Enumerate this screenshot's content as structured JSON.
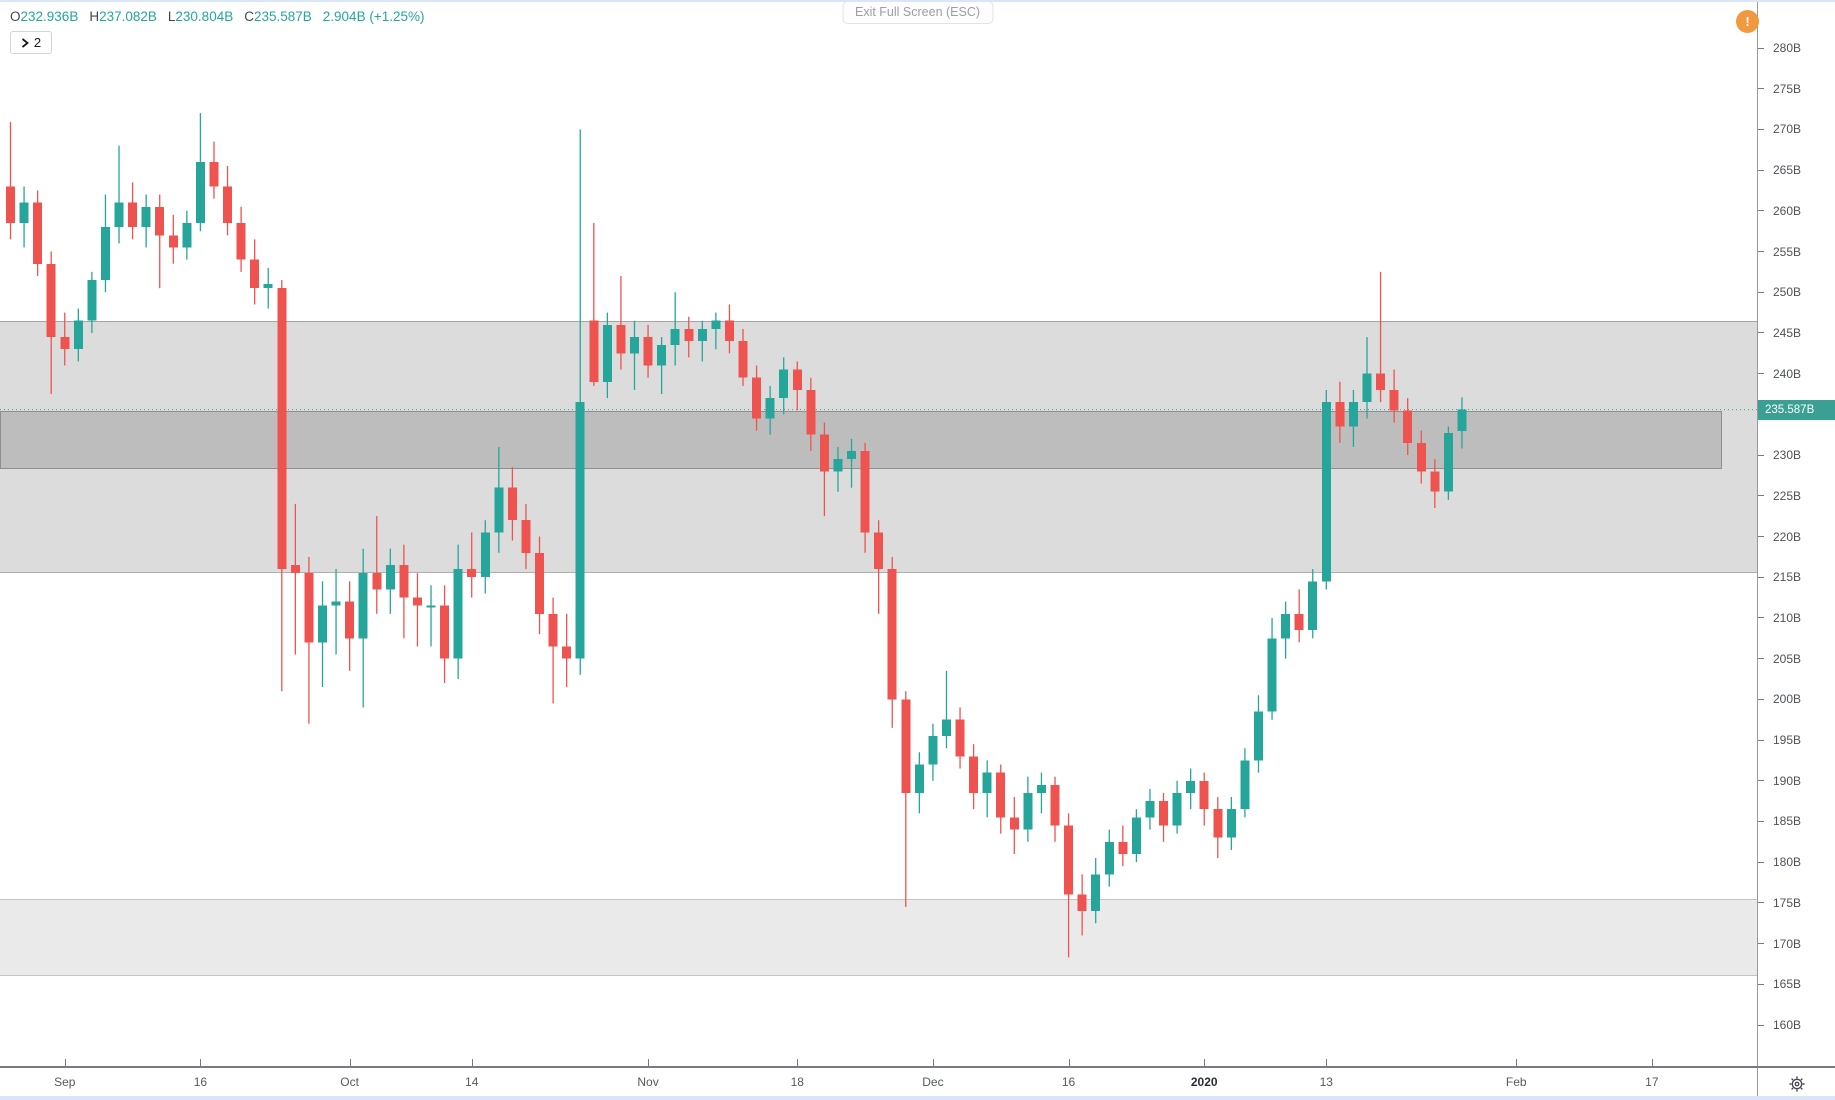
{
  "header": {
    "ohlc": {
      "open_label": "O",
      "open_value": "232.936B",
      "high_label": "H",
      "high_value": "237.082B",
      "low_label": "L",
      "low_value": "230.804B",
      "close_label": "C",
      "close_value": "235.587B",
      "change_value": "2.904B",
      "change_percent": "(+1.25%)"
    },
    "expand_button": {
      "label": "2"
    },
    "exit_fullscreen_label": "Exit Full Screen (ESC)"
  },
  "icons": {
    "warning_symbol": "!"
  },
  "colors": {
    "up": "#26a69a",
    "down": "#ef5350",
    "value_text": "#26a69a",
    "warning_orange": "#f0993e",
    "price_label_bg": "#3aa093",
    "current_price_line": "#3aa093"
  },
  "price_axis": {
    "tick_labels": [
      "280B",
      "275B",
      "270B",
      "265B",
      "260B",
      "255B",
      "250B",
      "245B",
      "240B",
      "235B",
      "230B",
      "225B",
      "220B",
      "215B",
      "210B",
      "205B",
      "200B",
      "195B",
      "190B",
      "185B",
      "180B",
      "175B",
      "170B",
      "165B",
      "160B"
    ],
    "current_price_label": "235.587B"
  },
  "time_axis": {
    "ticks": [
      {
        "label": "Sep",
        "index": 4,
        "bold": false
      },
      {
        "label": "16",
        "index": 14,
        "bold": false
      },
      {
        "label": "Oct",
        "index": 25,
        "bold": false
      },
      {
        "label": "14",
        "index": 34,
        "bold": false
      },
      {
        "label": "Nov",
        "index": 47,
        "bold": false
      },
      {
        "label": "18",
        "index": 58,
        "bold": false
      },
      {
        "label": "Dec",
        "index": 68,
        "bold": false
      },
      {
        "label": "16",
        "index": 78,
        "bold": false
      },
      {
        "label": "2020",
        "index": 88,
        "bold": true
      },
      {
        "label": "13",
        "index": 97,
        "bold": false
      },
      {
        "label": "Feb",
        "index": 111,
        "bold": false
      },
      {
        "label": "17",
        "index": 121,
        "bold": false
      }
    ]
  },
  "chart_data": {
    "type": "candlestick",
    "unit": "B",
    "title": "",
    "ylabel": "",
    "grid": false,
    "visible_price_range": [
      158,
      282
    ],
    "price_tick_interval": 5,
    "current_price": 235.587,
    "zones": [
      {
        "name": "upper-gray-zone",
        "price_top": 246.5,
        "price_bottom": 215.5,
        "full_width": true,
        "fill": "rgba(150,150,150,0.33)",
        "border_top": "rgba(120,120,120,0.55)",
        "border_bottom": "rgba(120,120,120,0.45)",
        "boxed": false
      },
      {
        "name": "mid-dark-zone",
        "price_top": 235.45,
        "price_bottom": 228.3,
        "full_width": false,
        "fill": "rgba(135,135,135,0.36)",
        "border_top": "rgba(105,105,105,0.55)",
        "border_bottom": "rgba(105,105,105,0.55)",
        "boxed": true
      },
      {
        "name": "lower-light-zone",
        "price_top": 175.5,
        "price_bottom": 166.0,
        "full_width": true,
        "fill": "rgba(180,180,180,0.28)",
        "border_top": "rgba(150,150,150,0.45)",
        "border_bottom": "rgba(150,150,150,0.45)",
        "boxed": false
      }
    ],
    "candles": [
      [
        263,
        270.9,
        256.5,
        258.5
      ],
      [
        258.5,
        263,
        255.5,
        261
      ],
      [
        261,
        262.5,
        252,
        253.5
      ],
      [
        253.5,
        255,
        237.5,
        244.5
      ],
      [
        244.5,
        247.5,
        241,
        243
      ],
      [
        243,
        248,
        241.5,
        246.5
      ],
      [
        246.5,
        252.5,
        245,
        251.5
      ],
      [
        251.5,
        262,
        250,
        258
      ],
      [
        258,
        268,
        256,
        261
      ],
      [
        261,
        263.5,
        256.5,
        258
      ],
      [
        258,
        262,
        255.5,
        260.5
      ],
      [
        260.5,
        262,
        250.5,
        257
      ],
      [
        257,
        259.5,
        253.5,
        255.5
      ],
      [
        255.5,
        260,
        254,
        258.5
      ],
      [
        258.5,
        272,
        257.5,
        266
      ],
      [
        266,
        268.5,
        261.5,
        263
      ],
      [
        263,
        265.5,
        257,
        258.5
      ],
      [
        258.5,
        260.5,
        252.5,
        254
      ],
      [
        254,
        256.5,
        248.5,
        250.5
      ],
      [
        250.5,
        253,
        248,
        251
      ],
      [
        250.5,
        251.5,
        201,
        216
      ],
      [
        216.5,
        224,
        205.5,
        215.5
      ],
      [
        215.5,
        217.5,
        197,
        207
      ],
      [
        207,
        214.5,
        201.5,
        211.5
      ],
      [
        211.5,
        216,
        205.5,
        212
      ],
      [
        212,
        214.5,
        203.5,
        207.5
      ],
      [
        207.5,
        218.5,
        199,
        215.5
      ],
      [
        215.5,
        222.5,
        210.5,
        213.5
      ],
      [
        213.5,
        218.5,
        210.5,
        216.5
      ],
      [
        216.5,
        219,
        207.5,
        212.5
      ],
      [
        212.5,
        215.5,
        206.5,
        211.5
      ],
      [
        211.5,
        214,
        206.5,
        211.5
      ],
      [
        211.5,
        214,
        202,
        205
      ],
      [
        205,
        219,
        202.5,
        216
      ],
      [
        216,
        220.5,
        212.5,
        215
      ],
      [
        215,
        222,
        213,
        220.5
      ],
      [
        220.5,
        231,
        218,
        226
      ],
      [
        226,
        228.5,
        219.5,
        222
      ],
      [
        222,
        224,
        216,
        218
      ],
      [
        218,
        220,
        208,
        210.5
      ],
      [
        210.5,
        212.5,
        199.5,
        206.5
      ],
      [
        206.5,
        210.5,
        201.5,
        205
      ],
      [
        205,
        270,
        203,
        236.5
      ],
      [
        246.5,
        258.5,
        238.5,
        239
      ],
      [
        239,
        247.5,
        237,
        246
      ],
      [
        246,
        252,
        240.5,
        242.5
      ],
      [
        242.5,
        246.5,
        238,
        244.5
      ],
      [
        244.5,
        246,
        239.5,
        241
      ],
      [
        241,
        244.5,
        237.5,
        243.5
      ],
      [
        243.5,
        250,
        241,
        245.5
      ],
      [
        245.5,
        247,
        242,
        244
      ],
      [
        244,
        246.5,
        241.5,
        245.5
      ],
      [
        245.5,
        247.5,
        243,
        246.5
      ],
      [
        246.5,
        248.5,
        242.5,
        244
      ],
      [
        244,
        245.5,
        238.5,
        239.5
      ],
      [
        239.5,
        241,
        233,
        234.5
      ],
      [
        234.5,
        238.5,
        232.5,
        237
      ],
      [
        237,
        242,
        235,
        240.5
      ],
      [
        240.5,
        241.5,
        235.5,
        238
      ],
      [
        238,
        239.5,
        230.5,
        232.5
      ],
      [
        232.5,
        234,
        222.5,
        228
      ],
      [
        228,
        231,
        225.5,
        229.5
      ],
      [
        229.5,
        232,
        226,
        230.5
      ],
      [
        230.5,
        231.5,
        218,
        220.5
      ],
      [
        220.5,
        222,
        210.5,
        216
      ],
      [
        216,
        217.5,
        196.5,
        200
      ],
      [
        200,
        201,
        174.5,
        188.5
      ],
      [
        188.5,
        193.5,
        186,
        192
      ],
      [
        192,
        197,
        190,
        195.5
      ],
      [
        195.5,
        203.5,
        194,
        197.5
      ],
      [
        197.5,
        199,
        191.5,
        193
      ],
      [
        193,
        194.5,
        186.5,
        188.5
      ],
      [
        188.5,
        192.5,
        185.5,
        191
      ],
      [
        191,
        192,
        183.5,
        185.5
      ],
      [
        185.5,
        188,
        181,
        184
      ],
      [
        184,
        190.5,
        182.5,
        188.5
      ],
      [
        188.5,
        191,
        186,
        189.5
      ],
      [
        189.5,
        190.5,
        182.5,
        184.5
      ],
      [
        184.5,
        186,
        168.3,
        176
      ],
      [
        176,
        178.5,
        171,
        174
      ],
      [
        174,
        180.5,
        172.5,
        178.5
      ],
      [
        178.5,
        184,
        177,
        182.5
      ],
      [
        182.5,
        184.5,
        179.5,
        181
      ],
      [
        181,
        186.5,
        180,
        185.5
      ],
      [
        185.5,
        189,
        184,
        187.5
      ],
      [
        187.5,
        188.5,
        182.5,
        184.5
      ],
      [
        184.5,
        190,
        183.5,
        188.5
      ],
      [
        188.5,
        191.5,
        186.5,
        190
      ],
      [
        190,
        191,
        184.5,
        186.5
      ],
      [
        186.5,
        188,
        180.5,
        183
      ],
      [
        183,
        188,
        181.5,
        186.5
      ],
      [
        186.5,
        194,
        185.5,
        192.5
      ],
      [
        192.5,
        200.5,
        191,
        198.5
      ],
      [
        198.5,
        210,
        197.5,
        207.5
      ],
      [
        207.5,
        212,
        205,
        210.5
      ],
      [
        210.5,
        213.5,
        207,
        208.5
      ],
      [
        208.5,
        216,
        207.5,
        214.5
      ],
      [
        214.5,
        238,
        213.5,
        236.5
      ],
      [
        236.5,
        239,
        231.5,
        233.5
      ],
      [
        233.5,
        238,
        231,
        236.5
      ],
      [
        236.5,
        244.5,
        234.5,
        240
      ],
      [
        240,
        252.5,
        236.5,
        238
      ],
      [
        238,
        240.5,
        234,
        235.5
      ],
      [
        235.5,
        237,
        230,
        231.5
      ],
      [
        231.5,
        233,
        226.5,
        228
      ],
      [
        228,
        229.5,
        223.5,
        225.5
      ],
      [
        225.5,
        233.5,
        224.5,
        232.7
      ],
      [
        232.936,
        237.082,
        230.804,
        235.587
      ]
    ]
  }
}
